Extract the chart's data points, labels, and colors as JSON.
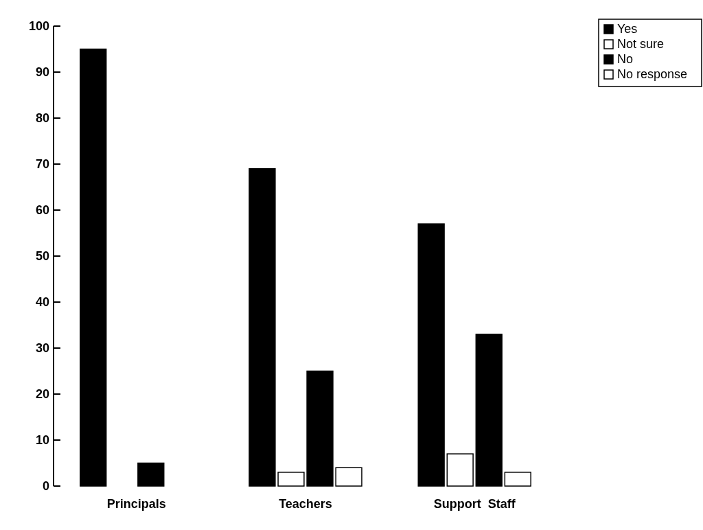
{
  "chart_data": {
    "type": "bar",
    "categories": [
      "Principals",
      "Teachers",
      "Support  Staff"
    ],
    "series": [
      {
        "name": "Yes",
        "color": "#000000",
        "values": [
          95,
          69,
          57
        ]
      },
      {
        "name": "Not sure",
        "color": "#ffffff",
        "values": [
          0,
          3,
          7
        ]
      },
      {
        "name": "No",
        "color": "#000000",
        "values": [
          5,
          25,
          33
        ]
      },
      {
        "name": "No response",
        "color": "#ffffff",
        "values": [
          0,
          4,
          3
        ]
      }
    ],
    "ylim": [
      0,
      100
    ],
    "yticks": [
      0,
      10,
      20,
      30,
      40,
      50,
      60,
      70,
      80,
      90,
      100
    ],
    "grid": false,
    "legend": "top right"
  }
}
